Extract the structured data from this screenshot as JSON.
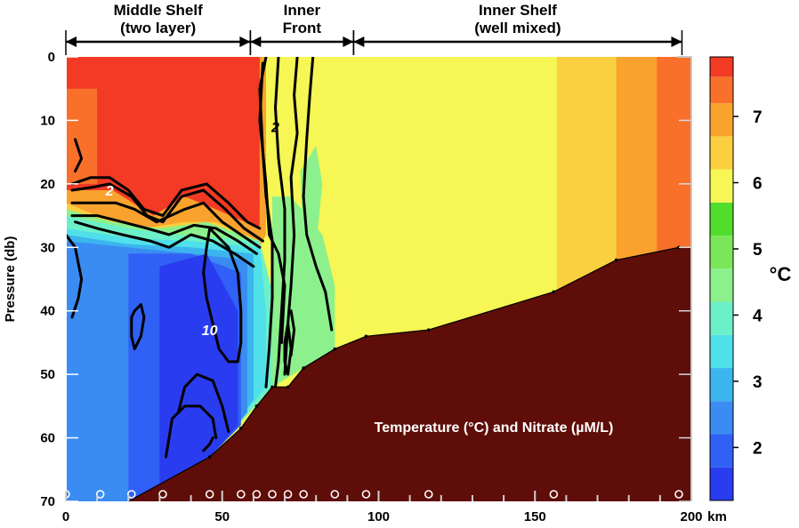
{
  "chart_data": {
    "type": "section-contour",
    "annotation": "Temperature (°C) and Nitrate (µM/L)",
    "ylabel": "Pressure (db)",
    "x_unit_label": "km",
    "xlim": [
      0,
      200
    ],
    "ylim": [
      70,
      0
    ],
    "x_ticks": [
      0,
      50,
      100,
      150,
      200
    ],
    "y_ticks": [
      0,
      10,
      20,
      30,
      40,
      50,
      60,
      70
    ],
    "colorbar": {
      "unit_label": "°C",
      "ticks": [
        2,
        3,
        4,
        5,
        6,
        7
      ],
      "levels": [
        {
          "from": 1.2,
          "to": 1.7,
          "color": "#2a3cf0"
        },
        {
          "from": 1.7,
          "to": 2.2,
          "color": "#3060f5"
        },
        {
          "from": 2.2,
          "to": 2.7,
          "color": "#3a8cf2"
        },
        {
          "from": 2.7,
          "to": 3.2,
          "color": "#3cb4ee"
        },
        {
          "from": 3.2,
          "to": 3.7,
          "color": "#50e0ea"
        },
        {
          "from": 3.7,
          "to": 4.2,
          "color": "#6cf0c8"
        },
        {
          "from": 4.2,
          "to": 4.7,
          "color": "#8cf08c"
        },
        {
          "from": 4.7,
          "to": 5.2,
          "color": "#7ce65a"
        },
        {
          "from": 5.2,
          "to": 5.7,
          "color": "#52dc2c"
        },
        {
          "from": 5.7,
          "to": 6.2,
          "color": "#f6f654"
        },
        {
          "from": 6.2,
          "to": 6.7,
          "color": "#fad040"
        },
        {
          "from": 6.7,
          "to": 7.2,
          "color": "#faa22e"
        },
        {
          "from": 7.2,
          "to": 7.6,
          "color": "#f8702a"
        },
        {
          "from": 7.6,
          "to": 7.9,
          "color": "#f23a24"
        }
      ]
    },
    "regions": [
      {
        "label_line1": "Middle Shelf",
        "label_line2": "(two layer)",
        "x_range": [
          0,
          59
        ]
      },
      {
        "label_line1": "Inner",
        "label_line2": "Front",
        "x_range": [
          59,
          92
        ]
      },
      {
        "label_line1": "Inner Shelf",
        "label_line2": "(well mixed)",
        "x_range": [
          92,
          197
        ]
      }
    ],
    "station_positions_km": [
      0,
      11,
      21,
      31,
      46,
      56,
      61,
      66,
      71,
      76,
      86,
      96,
      116,
      156,
      196
    ],
    "bottom_profile": [
      {
        "x": 20,
        "y": 70
      },
      {
        "x": 46,
        "y": 63
      },
      {
        "x": 56,
        "y": 58.5
      },
      {
        "x": 61,
        "y": 55
      },
      {
        "x": 66,
        "y": 52
      },
      {
        "x": 71,
        "y": 52
      },
      {
        "x": 76,
        "y": 49
      },
      {
        "x": 86,
        "y": 46
      },
      {
        "x": 96,
        "y": 44
      },
      {
        "x": 116,
        "y": 43
      },
      {
        "x": 156,
        "y": 37
      },
      {
        "x": 176,
        "y": 32
      },
      {
        "x": 196,
        "y": 30
      },
      {
        "x": 200,
        "y": 30
      }
    ],
    "nitrate_contour_labels": [
      {
        "text": "2",
        "x": 14,
        "y": 21,
        "color": "#ffffff"
      },
      {
        "text": "10",
        "x": 46,
        "y": 43,
        "color": "#ffffff"
      },
      {
        "text": "2",
        "x": 67,
        "y": 11,
        "color": "#000000"
      }
    ]
  }
}
